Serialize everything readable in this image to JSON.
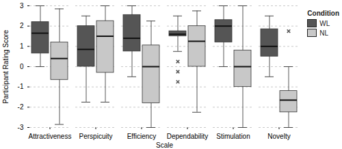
{
  "chart_data": {
    "type": "box",
    "x_label": "Scale",
    "y_label": "Participant Rating Score",
    "categories": [
      "Attractiveness",
      "Perspicuity",
      "Efficiency",
      "Dependability",
      "Stimulation",
      "Novelty"
    ],
    "ylim": [
      -3,
      3
    ],
    "yticks": [
      -3,
      -2,
      -1,
      0,
      1,
      2,
      3
    ],
    "grid": true,
    "legend": "right",
    "legend_title": "Condition",
    "series": [
      {
        "name": "WL",
        "color": "#555555",
        "min": [
          0,
          -1.75,
          -0.5,
          0.75,
          0,
          -0.5
        ],
        "q1": [
          0.65,
          0,
          0.75,
          1.5,
          1.2,
          0.5
        ],
        "median": [
          1.65,
          0.85,
          1.4,
          1.6,
          2,
          1
        ],
        "q3": [
          2.2,
          2,
          2.55,
          1.75,
          2.3,
          1.85
        ],
        "max": [
          3,
          2.5,
          3,
          2.5,
          3,
          2.5
        ],
        "outliers": [
          [],
          [],
          [],
          [
            0.25,
            -0.25,
            -0.75
          ],
          [],
          []
        ]
      },
      {
        "name": "NL",
        "color": "#c8c8c8",
        "min": [
          -2.85,
          -1.75,
          -3,
          -2.25,
          -3,
          -3
        ],
        "q1": [
          -0.65,
          -0.3,
          -1.8,
          0,
          -1,
          -2.25
        ],
        "median": [
          0.4,
          1.5,
          0,
          1.25,
          0,
          -1.65
        ],
        "q3": [
          1.2,
          2.25,
          1.05,
          2,
          0.8,
          -1.2
        ],
        "max": [
          2.85,
          3,
          2.25,
          2.75,
          3,
          0
        ],
        "outliers": [
          [],
          [],
          [],
          [],
          [],
          [
            1.75
          ]
        ]
      }
    ]
  }
}
